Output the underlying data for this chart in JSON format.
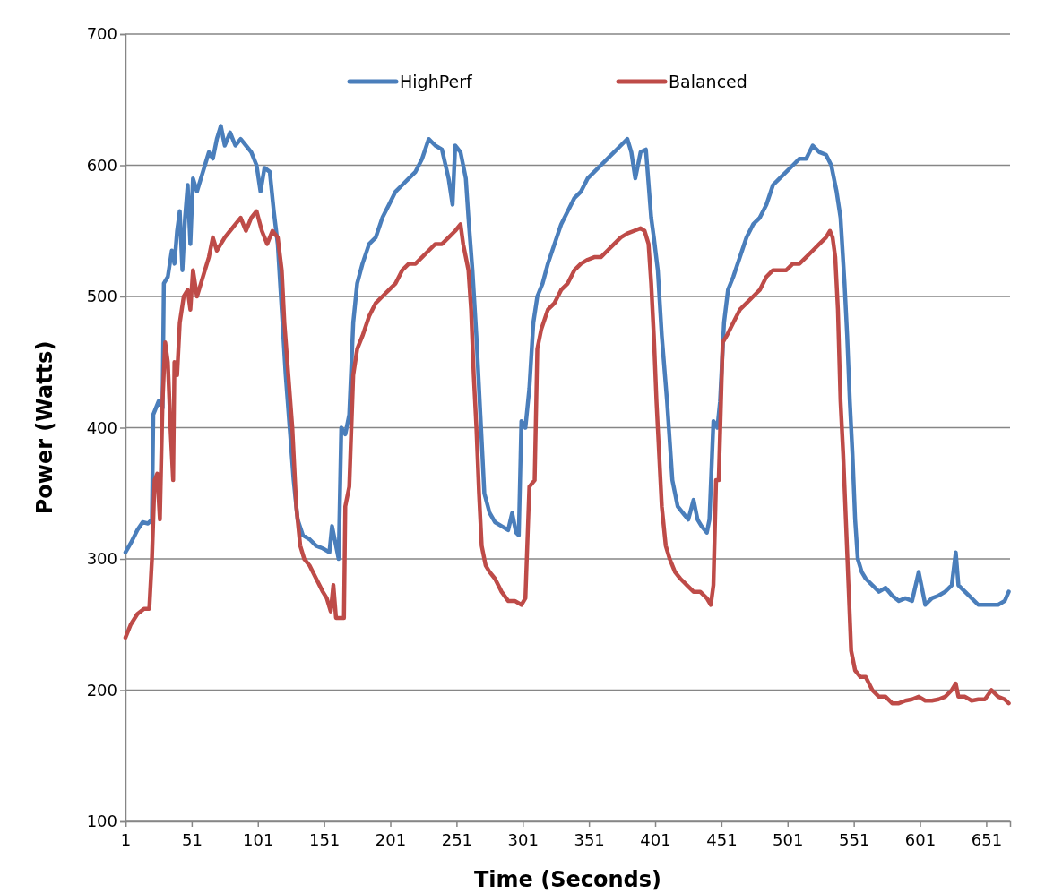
{
  "chart_data": {
    "type": "line",
    "xlabel": "Time (Seconds)",
    "ylabel": "Power (Watts)",
    "xlim": [
      1,
      669
    ],
    "xticks": [
      1,
      51,
      101,
      151,
      201,
      251,
      301,
      351,
      401,
      451,
      501,
      551,
      601,
      651
    ],
    "ylim": [
      100,
      700
    ],
    "yticks": [
      100,
      200,
      300,
      400,
      500,
      600,
      700
    ],
    "grid": "y",
    "legend": "top",
    "marker": "none",
    "line_style": "solid",
    "series": [
      {
        "name": "HighPerf",
        "color": "#4a7ebb",
        "x": [
          1,
          5,
          10,
          14,
          18,
          21,
          22,
          26,
          29,
          30,
          33,
          36,
          38,
          40,
          42,
          44,
          46,
          48,
          50,
          52,
          55,
          58,
          61,
          64,
          67,
          70,
          73,
          76,
          80,
          84,
          88,
          92,
          96,
          100,
          103,
          106,
          110,
          113,
          116,
          119,
          122,
          125,
          128,
          131,
          135,
          140,
          145,
          150,
          155,
          157,
          160,
          162,
          164,
          167,
          170,
          173,
          176,
          180,
          185,
          190,
          195,
          200,
          205,
          210,
          215,
          220,
          225,
          230,
          235,
          240,
          245,
          248,
          250,
          254,
          258,
          260,
          263,
          266,
          269,
          272,
          276,
          280,
          285,
          290,
          293,
          296,
          298,
          300,
          303,
          306,
          309,
          312,
          316,
          320,
          325,
          330,
          335,
          340,
          345,
          350,
          355,
          360,
          365,
          370,
          375,
          380,
          383,
          386,
          390,
          394,
          398,
          400,
          403,
          406,
          410,
          414,
          418,
          422,
          426,
          430,
          433,
          436,
          440,
          442,
          445,
          448,
          450,
          453,
          456,
          460,
          465,
          470,
          475,
          480,
          485,
          490,
          495,
          500,
          505,
          510,
          515,
          520,
          525,
          530,
          534,
          538,
          541,
          544,
          546,
          548,
          550,
          552,
          554,
          557,
          560,
          565,
          570,
          575,
          580,
          585,
          590,
          595,
          600,
          605,
          610,
          615,
          620,
          625,
          628,
          630,
          635,
          640,
          645,
          650,
          655,
          660,
          665,
          668
        ],
        "values": [
          305,
          312,
          322,
          328,
          327,
          330,
          410,
          420,
          415,
          510,
          515,
          535,
          525,
          550,
          565,
          520,
          560,
          585,
          540,
          590,
          580,
          590,
          600,
          610,
          605,
          620,
          630,
          615,
          625,
          615,
          620,
          615,
          610,
          600,
          580,
          598,
          595,
          565,
          540,
          490,
          440,
          400,
          360,
          330,
          318,
          315,
          310,
          308,
          305,
          325,
          310,
          300,
          400,
          395,
          410,
          480,
          510,
          525,
          540,
          545,
          560,
          570,
          580,
          585,
          590,
          595,
          605,
          620,
          615,
          612,
          590,
          570,
          615,
          610,
          590,
          560,
          520,
          470,
          410,
          350,
          335,
          328,
          325,
          322,
          335,
          320,
          318,
          405,
          400,
          430,
          480,
          500,
          510,
          525,
          540,
          555,
          565,
          575,
          580,
          590,
          595,
          600,
          605,
          610,
          615,
          620,
          610,
          590,
          610,
          612,
          560,
          545,
          520,
          470,
          420,
          360,
          340,
          335,
          330,
          345,
          330,
          325,
          320,
          330,
          405,
          400,
          420,
          480,
          505,
          515,
          530,
          545,
          555,
          560,
          570,
          585,
          590,
          595,
          600,
          605,
          605,
          615,
          610,
          608,
          600,
          580,
          560,
          510,
          470,
          420,
          380,
          330,
          300,
          290,
          285,
          280,
          275,
          278,
          272,
          268,
          270,
          268,
          290,
          265,
          270,
          272,
          275,
          280,
          305,
          280,
          275,
          270,
          265,
          265,
          265,
          265,
          268,
          275
        ]
      },
      {
        "name": "Balanced",
        "color": "#be4b48",
        "x": [
          1,
          5,
          10,
          15,
          19,
          21,
          23,
          25,
          27,
          29,
          31,
          33,
          35,
          37,
          38,
          40,
          42,
          45,
          48,
          50,
          52,
          55,
          58,
          61,
          64,
          67,
          70,
          73,
          76,
          80,
          84,
          88,
          92,
          96,
          100,
          104,
          108,
          112,
          116,
          119,
          121,
          124,
          127,
          130,
          133,
          136,
          140,
          145,
          150,
          153,
          156,
          158,
          160,
          163,
          166,
          167,
          170,
          173,
          176,
          180,
          185,
          190,
          195,
          200,
          205,
          210,
          215,
          220,
          225,
          230,
          235,
          240,
          245,
          250,
          254,
          256,
          258,
          260,
          262,
          264,
          266,
          268,
          270,
          273,
          276,
          280,
          285,
          290,
          295,
          300,
          303,
          306,
          310,
          312,
          315,
          320,
          325,
          330,
          335,
          340,
          345,
          350,
          355,
          360,
          365,
          370,
          375,
          380,
          385,
          390,
          393,
          396,
          398,
          400,
          402,
          404,
          406,
          409,
          412,
          416,
          420,
          425,
          430,
          435,
          440,
          443,
          445,
          447,
          449,
          452,
          455,
          460,
          465,
          470,
          475,
          480,
          485,
          490,
          495,
          500,
          505,
          510,
          515,
          520,
          525,
          530,
          533,
          535,
          537,
          539,
          541,
          543,
          545,
          547,
          549,
          552,
          556,
          560,
          565,
          570,
          575,
          580,
          585,
          590,
          595,
          600,
          605,
          610,
          615,
          620,
          625,
          628,
          630,
          635,
          640,
          645,
          650,
          655,
          660,
          665,
          668
        ],
        "values": [
          240,
          250,
          258,
          262,
          262,
          300,
          360,
          365,
          330,
          420,
          465,
          450,
          400,
          360,
          450,
          440,
          480,
          500,
          505,
          490,
          520,
          500,
          510,
          520,
          530,
          545,
          535,
          540,
          545,
          550,
          555,
          560,
          550,
          560,
          565,
          550,
          540,
          550,
          545,
          520,
          480,
          440,
          400,
          340,
          310,
          300,
          295,
          285,
          275,
          270,
          260,
          280,
          255,
          255,
          255,
          340,
          355,
          440,
          460,
          470,
          485,
          495,
          500,
          505,
          510,
          520,
          525,
          525,
          530,
          535,
          540,
          540,
          545,
          550,
          555,
          540,
          530,
          520,
          490,
          440,
          400,
          350,
          310,
          295,
          290,
          285,
          275,
          268,
          268,
          265,
          270,
          355,
          360,
          460,
          475,
          490,
          495,
          505,
          510,
          520,
          525,
          528,
          530,
          530,
          535,
          540,
          545,
          548,
          550,
          552,
          550,
          540,
          510,
          470,
          420,
          380,
          340,
          310,
          300,
          290,
          285,
          280,
          275,
          275,
          270,
          265,
          280,
          360,
          360,
          465,
          470,
          480,
          490,
          495,
          500,
          505,
          515,
          520,
          520,
          520,
          525,
          525,
          530,
          535,
          540,
          545,
          550,
          545,
          530,
          490,
          420,
          380,
          330,
          280,
          230,
          215,
          210,
          210,
          200,
          195,
          195,
          190,
          190,
          192,
          193,
          195,
          192,
          192,
          193,
          195,
          200,
          205,
          195,
          195,
          192,
          193,
          193,
          200,
          195,
          193,
          190
        ]
      }
    ]
  }
}
